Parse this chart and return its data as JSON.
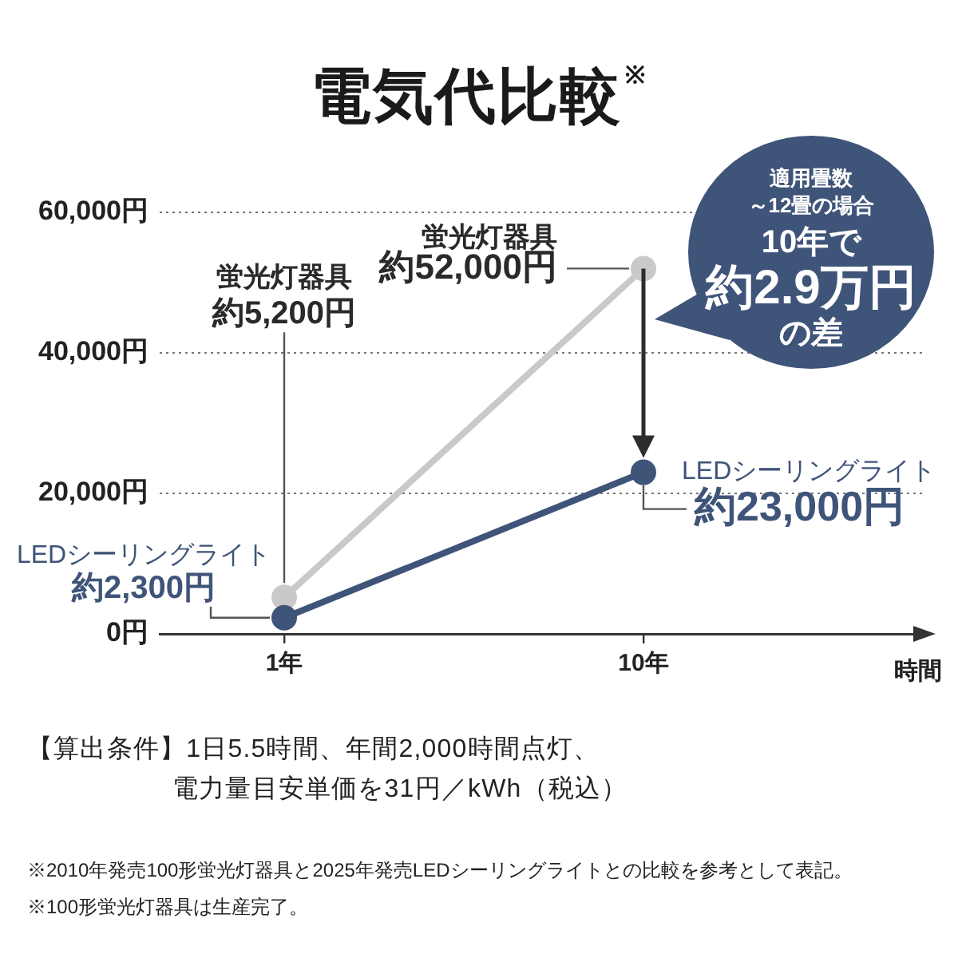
{
  "chart_data": {
    "type": "line",
    "title": "電気代比較$^{※}$",
    "xlabel": "時間",
    "categories": [
      "1年",
      "10年"
    ],
    "series": [
      {
        "name": "蛍光灯器具",
        "color": "#c9c9c9",
        "values": [
          5200,
          52000
        ],
        "value_labels": [
          "約5,200円",
          "約52,000円"
        ]
      },
      {
        "name": "LEDシーリングライト",
        "color": "#3f5479",
        "values": [
          2300,
          23000
        ],
        "value_labels": [
          "約2,300円",
          "約23,000円"
        ]
      }
    ],
    "ylim": [
      0,
      60000
    ],
    "yticks": [
      {
        "value": 0,
        "label": "0円"
      },
      {
        "value": 20000,
        "label": "20,000円"
      },
      {
        "value": 40000,
        "label": "40,000円"
      },
      {
        "value": 60000,
        "label": "60,000円"
      }
    ],
    "grid": "y",
    "marker": "circle",
    "line_style": "solid",
    "annotations": [
      "適用畳数",
      "～12畳の場合",
      "10年で",
      "約2.9万円",
      "の差",
      "【算出条件】1日5.5時間、年間2,000時間点灯、電力量目安単価を31円／kWh（税込）",
      "※2010年発売100形蛍光灯器具と2025年発売LEDシーリングライトとの比較を参考として表記。",
      "※100形蛍光灯器具は生産完了。"
    ]
  }
}
